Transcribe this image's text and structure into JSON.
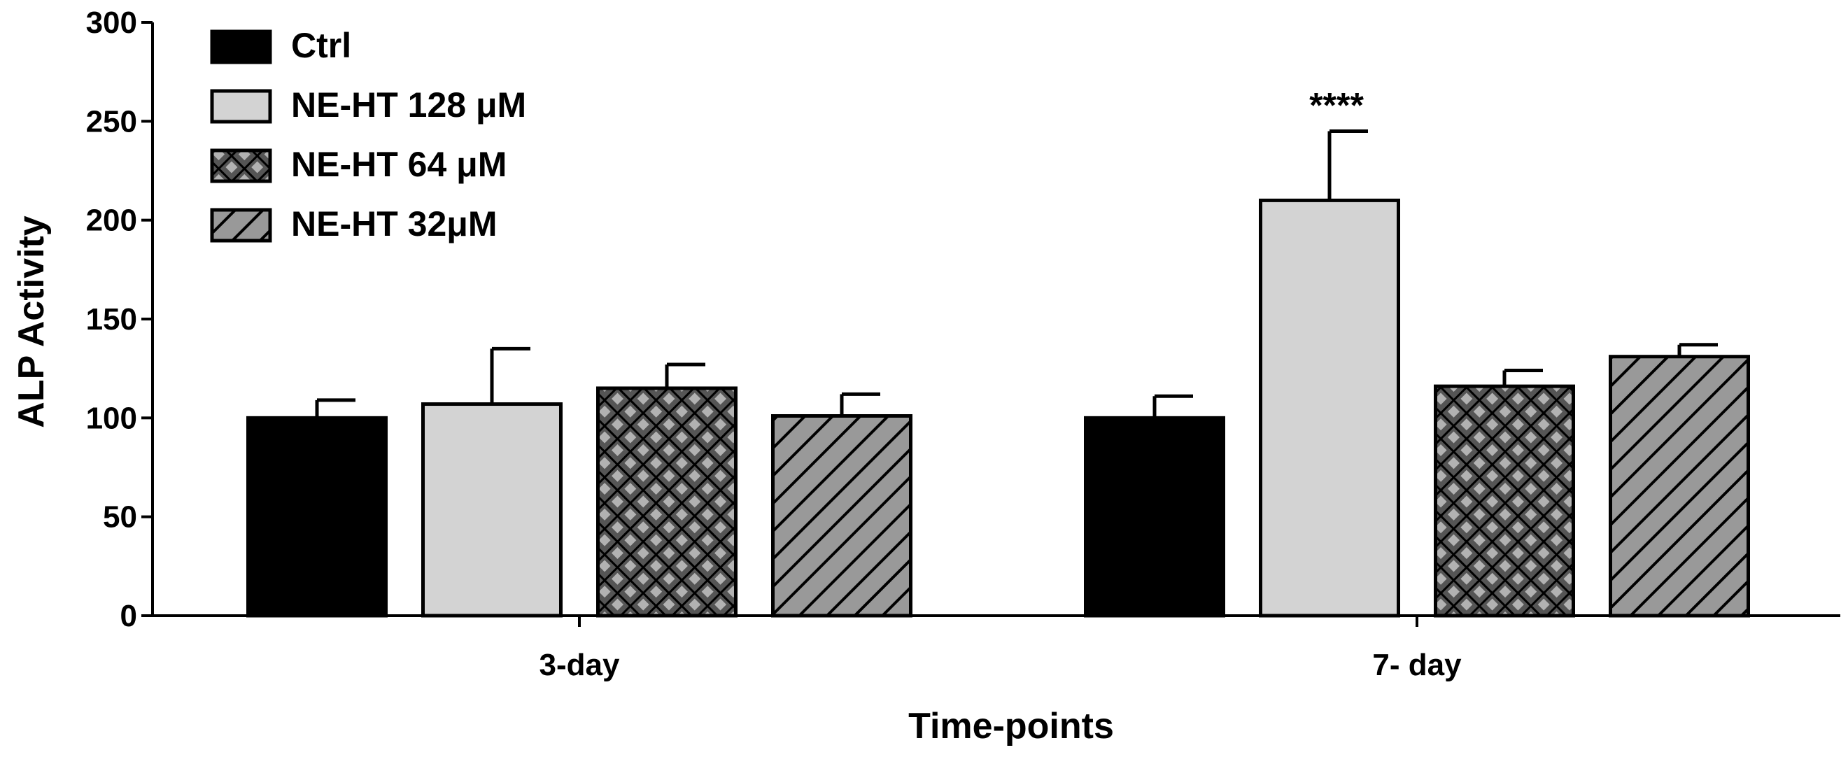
{
  "chart_data": {
    "type": "bar",
    "title": "",
    "xlabel": "Time-points",
    "ylabel": "ALP Activity",
    "ylim": [
      0,
      300
    ],
    "yticks": [
      0,
      50,
      100,
      150,
      200,
      250,
      300
    ],
    "grid": false,
    "legend_position": "top-left",
    "categories": [
      "3-day",
      "7- day"
    ],
    "series": [
      {
        "name": "Ctrl",
        "values": [
          100,
          100
        ],
        "errors": [
          9,
          11
        ],
        "color": "#000000",
        "pattern": "solid"
      },
      {
        "name": "NE-HT 128 μM",
        "values": [
          107,
          210
        ],
        "errors": [
          28,
          35
        ],
        "color": "#d3d3d3",
        "pattern": "solid"
      },
      {
        "name": "NE-HT 64 μM",
        "values": [
          115,
          116
        ],
        "errors": [
          12,
          8
        ],
        "color": "#555555",
        "pattern": "crosshatch"
      },
      {
        "name": "NE-HT 32μM",
        "values": [
          101,
          131
        ],
        "errors": [
          11,
          6
        ],
        "color": "#999999",
        "pattern": "diagonal"
      }
    ],
    "annotations": [
      {
        "text": "****",
        "category": "7- day",
        "series": "NE-HT 128 μM"
      }
    ]
  }
}
